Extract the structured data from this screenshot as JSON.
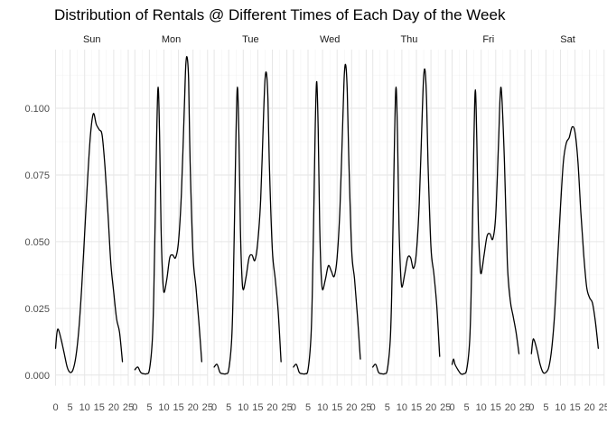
{
  "chart_data": {
    "type": "line",
    "title": "Distribution of Rentals @ Different Times of Each Day of the Week",
    "xlabel": "",
    "ylabel": "",
    "xlim": [
      0,
      25
    ],
    "ylim": [
      -0.004,
      0.122
    ],
    "x_ticks": [
      0,
      5,
      10,
      15,
      20,
      25
    ],
    "x_tick_labels": [
      "0",
      "5",
      "10",
      "15",
      "20",
      "25"
    ],
    "y_ticks": [
      0.0,
      0.025,
      0.05,
      0.075,
      0.1
    ],
    "y_tick_labels": [
      "0.000",
      "0.025",
      "0.050",
      "0.075",
      "0.100"
    ],
    "grid": true,
    "legend": "none",
    "line_color": "#000000",
    "panels": [
      {
        "name": "Sun",
        "x": [
          0,
          0.5,
          1,
          2,
          3,
          4,
          5,
          6,
          7,
          8,
          9,
          10,
          11,
          12,
          13,
          14,
          15,
          16,
          17,
          18,
          19,
          20,
          21,
          22,
          23
        ],
        "y": [
          0.01,
          0.016,
          0.017,
          0.013,
          0.008,
          0.003,
          0.001,
          0.002,
          0.007,
          0.017,
          0.033,
          0.053,
          0.073,
          0.09,
          0.098,
          0.094,
          0.092,
          0.09,
          0.078,
          0.061,
          0.042,
          0.031,
          0.021,
          0.016,
          0.005
        ]
      },
      {
        "name": "Mon",
        "x": [
          0,
          1,
          2,
          3,
          4,
          5,
          6,
          6.5,
          7,
          7.5,
          8,
          8.5,
          9,
          9.5,
          10,
          11,
          12,
          13,
          14,
          15,
          16,
          17,
          17.5,
          18,
          18.5,
          19,
          20,
          21,
          22,
          23
        ],
        "y": [
          0.002,
          0.003,
          0.001,
          0.0005,
          0.0005,
          0.002,
          0.013,
          0.03,
          0.059,
          0.09,
          0.108,
          0.09,
          0.056,
          0.038,
          0.031,
          0.036,
          0.044,
          0.045,
          0.044,
          0.05,
          0.068,
          0.1,
          0.116,
          0.119,
          0.11,
          0.08,
          0.045,
          0.033,
          0.02,
          0.005
        ]
      },
      {
        "name": "Tue",
        "x": [
          0,
          1,
          2,
          3,
          4,
          5,
          6,
          6.5,
          7,
          7.5,
          8,
          8.5,
          9,
          9.5,
          10,
          11,
          12,
          13,
          14,
          15,
          16,
          17,
          17.5,
          18,
          18.5,
          19,
          20,
          21,
          22,
          23
        ],
        "y": [
          0.003,
          0.004,
          0.001,
          0.0005,
          0.0005,
          0.002,
          0.013,
          0.03,
          0.059,
          0.09,
          0.108,
          0.09,
          0.056,
          0.038,
          0.032,
          0.037,
          0.044,
          0.045,
          0.043,
          0.05,
          0.066,
          0.098,
          0.111,
          0.113,
          0.103,
          0.078,
          0.047,
          0.036,
          0.024,
          0.005
        ]
      },
      {
        "name": "Wed",
        "x": [
          0,
          1,
          2,
          3,
          4,
          5,
          6,
          6.5,
          7,
          7.5,
          8,
          8.5,
          9,
          9.5,
          10,
          11,
          12,
          13,
          14,
          15,
          16,
          17,
          17.5,
          18,
          18.5,
          19,
          20,
          21,
          22,
          23
        ],
        "y": [
          0.003,
          0.004,
          0.001,
          0.0005,
          0.0005,
          0.002,
          0.014,
          0.032,
          0.062,
          0.094,
          0.11,
          0.092,
          0.057,
          0.038,
          0.032,
          0.036,
          0.041,
          0.039,
          0.037,
          0.044,
          0.063,
          0.097,
          0.113,
          0.116,
          0.106,
          0.082,
          0.047,
          0.036,
          0.022,
          0.006
        ]
      },
      {
        "name": "Thu",
        "x": [
          0,
          1,
          2,
          3,
          4,
          5,
          6,
          6.5,
          7,
          7.5,
          8,
          8.5,
          9,
          9.5,
          10,
          11,
          12,
          13,
          14,
          15,
          16,
          17,
          17.5,
          18,
          18.5,
          19,
          20,
          21,
          22,
          23
        ],
        "y": [
          0.003,
          0.004,
          0.001,
          0.0005,
          0.0005,
          0.002,
          0.013,
          0.03,
          0.059,
          0.09,
          0.108,
          0.09,
          0.057,
          0.04,
          0.033,
          0.038,
          0.044,
          0.044,
          0.04,
          0.046,
          0.065,
          0.098,
          0.112,
          0.114,
          0.103,
          0.079,
          0.048,
          0.038,
          0.026,
          0.007
        ]
      },
      {
        "name": "Fri",
        "x": [
          0,
          0.5,
          1,
          2,
          3,
          4,
          5,
          6,
          6.5,
          7,
          7.5,
          8,
          8.5,
          9,
          9.5,
          10,
          11,
          12,
          13,
          14,
          15,
          16,
          16.5,
          17,
          18,
          19,
          20,
          21,
          22,
          23
        ],
        "y": [
          0.004,
          0.006,
          0.004,
          0.002,
          0.0005,
          0.0005,
          0.002,
          0.012,
          0.028,
          0.056,
          0.088,
          0.107,
          0.088,
          0.058,
          0.043,
          0.038,
          0.045,
          0.052,
          0.053,
          0.051,
          0.06,
          0.088,
          0.104,
          0.106,
          0.08,
          0.042,
          0.028,
          0.022,
          0.016,
          0.008
        ]
      },
      {
        "name": "Sat",
        "x": [
          0,
          0.5,
          1,
          2,
          3,
          4,
          5,
          6,
          7,
          8,
          9,
          10,
          11,
          12,
          13,
          14,
          15,
          16,
          17,
          18,
          19,
          20,
          21,
          22,
          23
        ],
        "y": [
          0.008,
          0.013,
          0.013,
          0.009,
          0.004,
          0.001,
          0.001,
          0.003,
          0.01,
          0.023,
          0.043,
          0.063,
          0.08,
          0.087,
          0.089,
          0.093,
          0.091,
          0.08,
          0.061,
          0.045,
          0.033,
          0.029,
          0.027,
          0.02,
          0.01
        ]
      }
    ]
  }
}
